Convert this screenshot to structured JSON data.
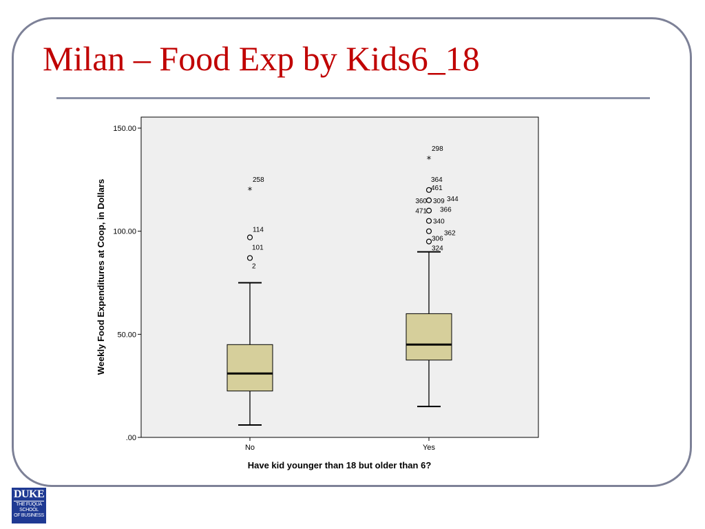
{
  "slide": {
    "title": "Milan – Food Exp by Kids6_18"
  },
  "logo": {
    "main": "DUKE",
    "line1": "THE FUQUA",
    "line2": "SCHOOL",
    "line3": "OF BUSINESS"
  },
  "colors": {
    "title": "#c00000",
    "box_fill": "#d6cf9b",
    "plot_background": "#efefef",
    "frame": "#7d8197",
    "logo_background": "#1f3a93"
  },
  "chart_data": {
    "type": "boxplot",
    "title": "",
    "xlabel": "Have kid younger than 18 but older than 6?",
    "ylabel": "Weekly Food Expenditures at Coop, in Dollars",
    "ylim": [
      0,
      150
    ],
    "yticks": [
      {
        "value": 0,
        "label": ".00"
      },
      {
        "value": 50,
        "label": "50.00"
      },
      {
        "value": 100,
        "label": "100.00"
      },
      {
        "value": 150,
        "label": "150.00"
      }
    ],
    "grid": false,
    "categories": [
      "No",
      "Yes"
    ],
    "boxes": [
      {
        "category": "No",
        "whisker_low": 6,
        "q1": 22.5,
        "median": 31,
        "q3": 45,
        "whisker_high": 75,
        "outliers": [
          {
            "value": 120,
            "marker": "star",
            "label": "258"
          },
          {
            "value": 97,
            "marker": "circle",
            "label": "114"
          },
          {
            "value": 87,
            "marker": "circle",
            "label": "101"
          },
          {
            "value": 87,
            "marker": "circle",
            "label": "2"
          }
        ]
      },
      {
        "category": "Yes",
        "whisker_low": 15,
        "q1": 37.5,
        "median": 45,
        "q3": 60,
        "whisker_high": 90,
        "outliers": [
          {
            "value": 135,
            "marker": "star",
            "label": "298"
          },
          {
            "value": 120,
            "marker": "circle",
            "label": "364"
          },
          {
            "value": 120,
            "marker": "circle",
            "label": "461"
          },
          {
            "value": 115,
            "marker": "circle",
            "label": "360"
          },
          {
            "value": 115,
            "marker": "circle",
            "label": "309"
          },
          {
            "value": 115,
            "marker": "circle",
            "label": "344"
          },
          {
            "value": 110,
            "marker": "circle",
            "label": "471"
          },
          {
            "value": 110,
            "marker": "circle",
            "label": "366"
          },
          {
            "value": 105,
            "marker": "circle",
            "label": "340"
          },
          {
            "value": 100,
            "marker": "circle",
            "label": "362"
          },
          {
            "value": 95,
            "marker": "circle",
            "label": "306"
          },
          {
            "value": 95,
            "marker": "circle",
            "label": "324"
          }
        ]
      }
    ]
  }
}
